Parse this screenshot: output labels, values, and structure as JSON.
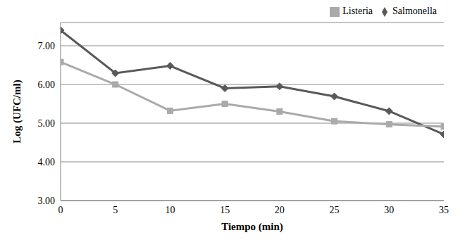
{
  "chart_data": {
    "type": "line",
    "x_label": "Tiempo (min)",
    "y_label": "Log (UFC/ml)",
    "x": [
      0,
      5,
      10,
      15,
      20,
      25,
      30,
      35
    ],
    "xlim": [
      0,
      35
    ],
    "xticks": [
      0,
      5,
      10,
      15,
      20,
      25,
      30,
      35
    ],
    "ylim": [
      3,
      7.6
    ],
    "yticks": [
      {
        "value": 3,
        "label": "3.00"
      },
      {
        "value": 4,
        "label": "4.00"
      },
      {
        "value": 5,
        "label": "5.00"
      },
      {
        "value": 6,
        "label": "6.00"
      },
      {
        "value": 7,
        "label": "7.00"
      }
    ],
    "grid": true,
    "legend": "top-right",
    "series": [
      {
        "name": "Salmonella",
        "color": "#595959",
        "marker": "diamond",
        "values": [
          7.4,
          6.29,
          6.48,
          5.9,
          5.95,
          5.69,
          5.31,
          4.71
        ]
      },
      {
        "name": "Listeria",
        "color": "#aaaaaa",
        "marker": "square",
        "values": [
          6.58,
          6.0,
          5.32,
          5.5,
          5.3,
          5.05,
          4.97,
          4.91
        ]
      }
    ]
  }
}
